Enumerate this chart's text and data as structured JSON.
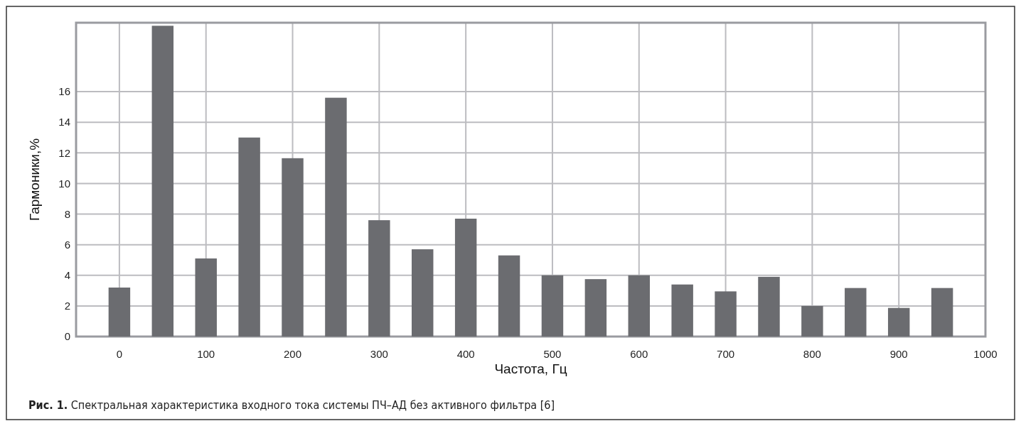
{
  "chart_data": {
    "type": "bar",
    "xlabel": "Частота, Гц",
    "ylabel": "Гармоники,%",
    "annotations": [
      "Рис. 1. Спектральная характеристика входного тока системы ПЧ–АД без активного фильтра [6]"
    ],
    "x": [
      0,
      50,
      100,
      150,
      200,
      250,
      300,
      350,
      400,
      450,
      500,
      550,
      600,
      650,
      700,
      750,
      800,
      850,
      900,
      950
    ],
    "values": [
      3.2,
      20.3,
      5.1,
      13.0,
      11.65,
      15.6,
      7.6,
      5.7,
      7.7,
      5.3,
      4.0,
      3.75,
      4.0,
      3.4,
      2.95,
      3.9,
      2.0,
      3.17,
      1.87,
      3.17
    ],
    "color": "#6b6c70",
    "xlim": [
      -50,
      1000
    ],
    "xticks": [
      0,
      100,
      200,
      300,
      400,
      500,
      600,
      700,
      800,
      900,
      1000
    ],
    "ylim": [
      0,
      20.5
    ],
    "yticks": [
      0,
      2,
      4,
      6,
      8,
      10,
      12,
      14,
      16
    ],
    "grid": true
  }
}
